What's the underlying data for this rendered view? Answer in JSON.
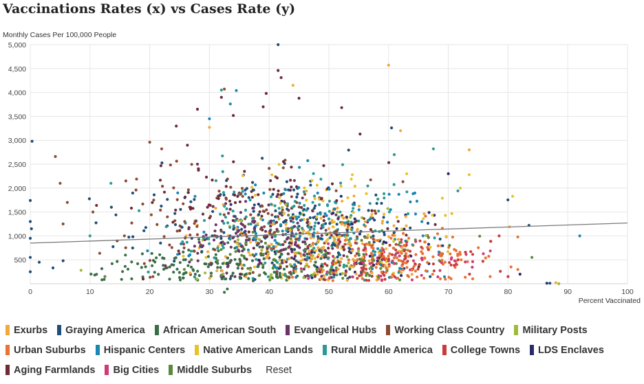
{
  "title": "Vaccinations Rates (x) vs Cases Rate (y)",
  "reset_label": "Reset",
  "chart_data": {
    "type": "scatter",
    "title": "Vaccinations Rates (x) vs Cases Rate (y)",
    "xlabel": "Percent Vaccinated",
    "ylabel": "Monthly Cases Per 100,000 People",
    "xlim": [
      0,
      100
    ],
    "ylim": [
      0,
      5000
    ],
    "x_ticks": [
      "0",
      "10",
      "20",
      "30",
      "40",
      "50",
      "60",
      "70",
      "80",
      "90",
      "100"
    ],
    "y_ticks": [
      "500",
      "1,000",
      "1,500",
      "2,000",
      "2,500",
      "3,000",
      "3,500",
      "4,000",
      "4,500",
      "5,000"
    ],
    "grid": true,
    "legend_position": "bottom",
    "trendline": {
      "x": [
        0,
        100
      ],
      "y": [
        850,
        1270
      ],
      "color": "#777777"
    },
    "series": [
      {
        "name": "Exurbs",
        "color": "#f2a93b",
        "center": [
          47,
          800
        ],
        "spread": [
          9,
          420
        ],
        "count": 160,
        "extra": [
          [
            73.5,
            2800
          ],
          [
            60,
            4570
          ],
          [
            44,
            4150
          ],
          [
            30,
            3270
          ],
          [
            62,
            3200
          ],
          [
            88,
            20
          ]
        ]
      },
      {
        "name": "Graying America",
        "color": "#1f4e79",
        "center": [
          42,
          1250
        ],
        "spread": [
          13,
          600
        ],
        "count": 150,
        "extra": [
          [
            0.3,
            2980
          ],
          [
            0,
            1740
          ],
          [
            0,
            1300
          ],
          [
            0.2,
            1150
          ],
          [
            0,
            950
          ],
          [
            0,
            550
          ],
          [
            1.5,
            450
          ],
          [
            0,
            250
          ],
          [
            3.8,
            330
          ],
          [
            5.5,
            480
          ],
          [
            41.5,
            5000
          ],
          [
            60.5,
            3260
          ],
          [
            83.5,
            1220
          ],
          [
            87,
            10
          ]
        ]
      },
      {
        "name": "African American South",
        "color": "#3a6e48",
        "center": [
          33,
          380
        ],
        "spread": [
          11,
          230
        ],
        "count": 160,
        "extra": [
          [
            32.5,
            -180
          ],
          [
            33,
            -110
          ],
          [
            12,
            80
          ]
        ]
      },
      {
        "name": "Evangelical Hubs",
        "color": "#6b3467",
        "center": [
          40,
          900
        ],
        "spread": [
          7,
          420
        ],
        "count": 170,
        "extra": [
          [
            28,
            2500
          ],
          [
            35,
            1900
          ]
        ]
      },
      {
        "name": "Working Class Country",
        "color": "#8b4a33",
        "center": [
          37,
          1100
        ],
        "spread": [
          11,
          650
        ],
        "count": 150,
        "extra": [
          [
            4.2,
            2660
          ],
          [
            5,
            2100
          ],
          [
            5.5,
            1250
          ],
          [
            6.2,
            1700
          ],
          [
            10.5,
            1500
          ],
          [
            16,
            2150
          ],
          [
            20,
            2960
          ],
          [
            22,
            2820
          ],
          [
            32.5,
            4070
          ]
        ]
      },
      {
        "name": "Military Posts",
        "color": "#9fba3a",
        "center": [
          46,
          900
        ],
        "spread": [
          10,
          450
        ],
        "count": 50,
        "extra": [
          [
            8.5,
            280
          ],
          [
            88.5,
            0
          ]
        ]
      },
      {
        "name": "Urban Suburbs",
        "color": "#ea7233",
        "center": [
          62,
          550
        ],
        "spread": [
          8,
          300
        ],
        "count": 150,
        "extra": [
          [
            80.5,
            350
          ],
          [
            77,
            150
          ]
        ]
      },
      {
        "name": "Hispanic Centers",
        "color": "#1a86b3",
        "center": [
          46,
          1200
        ],
        "spread": [
          10,
          550
        ],
        "count": 110,
        "extra": [
          [
            92,
            1000
          ],
          [
            33.5,
            3760
          ],
          [
            34.5,
            4040
          ],
          [
            30,
            3450
          ]
        ]
      },
      {
        "name": "Native American Lands",
        "color": "#e8c12c",
        "center": [
          51,
          1100
        ],
        "spread": [
          11,
          600
        ],
        "count": 90,
        "extra": [
          [
            73.5,
            2280
          ],
          [
            72,
            2000
          ]
        ]
      },
      {
        "name": "Rural Middle America",
        "color": "#2a9a92",
        "center": [
          45,
          1200
        ],
        "spread": [
          10,
          580
        ],
        "count": 180,
        "extra": [
          [
            10,
            1000
          ],
          [
            13.5,
            2100
          ],
          [
            32,
            4050
          ],
          [
            67.5,
            2820
          ]
        ]
      },
      {
        "name": "College Towns",
        "color": "#c63d3a",
        "center": [
          60,
          500
        ],
        "spread": [
          8,
          280
        ],
        "count": 100,
        "extra": [
          [
            78.5,
            1000
          ],
          [
            80,
            150
          ]
        ]
      },
      {
        "name": "LDS Enclaves",
        "color": "#2b2a6b",
        "center": [
          52,
          800
        ],
        "spread": [
          10,
          500
        ],
        "count": 50,
        "extra": [
          [
            82,
            200
          ],
          [
            86.5,
            10
          ],
          [
            70,
            2300
          ]
        ]
      },
      {
        "name": "Aging Farmlands",
        "color": "#6e2a36",
        "center": [
          40,
          1600
        ],
        "spread": [
          12,
          750
        ],
        "count": 120,
        "extra": [
          [
            41.5,
            4460
          ],
          [
            42,
            4310
          ],
          [
            39.5,
            3980
          ],
          [
            45,
            3880
          ],
          [
            28,
            3650
          ],
          [
            39,
            3700
          ],
          [
            32,
            3900
          ]
        ]
      },
      {
        "name": "Big Cities",
        "color": "#cf3a77",
        "center": [
          63,
          450
        ],
        "spread": [
          7,
          250
        ],
        "count": 60,
        "extra": []
      },
      {
        "name": "Middle Suburbs",
        "color": "#5a8a3d",
        "center": [
          48,
          600
        ],
        "spread": [
          11,
          350
        ],
        "count": 110,
        "extra": [
          [
            12.5,
            150
          ],
          [
            84,
            550
          ]
        ]
      }
    ]
  },
  "legend": {
    "rows": [
      [
        0,
        1,
        2,
        3,
        4,
        5
      ],
      [
        6,
        7,
        8,
        9,
        10,
        11
      ],
      [
        12,
        13,
        14
      ]
    ]
  }
}
